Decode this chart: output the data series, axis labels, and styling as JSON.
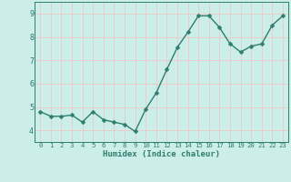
{
  "x": [
    0,
    1,
    2,
    3,
    4,
    5,
    6,
    7,
    8,
    9,
    10,
    11,
    12,
    13,
    14,
    15,
    16,
    17,
    18,
    19,
    20,
    21,
    22,
    23
  ],
  "y": [
    4.8,
    4.6,
    4.6,
    4.65,
    4.35,
    4.8,
    4.45,
    4.35,
    4.25,
    3.95,
    4.9,
    5.6,
    6.6,
    7.55,
    8.2,
    8.9,
    8.9,
    8.4,
    7.7,
    7.35,
    7.6,
    7.7,
    8.5,
    8.9
  ],
  "line_color": "#2e7d6e",
  "marker_color": "#2e7d6e",
  "bg_color": "#cceee8",
  "grid_color": "#f5c0c0",
  "xlabel": "Humidex (Indice chaleur)",
  "xlabel_color": "#2e7d6e",
  "tick_color": "#2e7d6e",
  "ylim": [
    3.5,
    9.5
  ],
  "xlim": [
    -0.5,
    23.5
  ],
  "yticks": [
    4,
    5,
    6,
    7,
    8,
    9
  ],
  "xticks": [
    0,
    1,
    2,
    3,
    4,
    5,
    6,
    7,
    8,
    9,
    10,
    11,
    12,
    13,
    14,
    15,
    16,
    17,
    18,
    19,
    20,
    21,
    22,
    23
  ],
  "xtick_labels": [
    "0",
    "1",
    "2",
    "3",
    "4",
    "5",
    "6",
    "7",
    "8",
    "9",
    "10",
    "11",
    "12",
    "13",
    "14",
    "15",
    "16",
    "17",
    "18",
    "19",
    "20",
    "21",
    "22",
    "23"
  ],
  "spine_color": "#2e7d6e",
  "marker_size": 2.5,
  "line_width": 1.0,
  "xlabel_fontsize": 6.5,
  "xtick_fontsize": 5.2,
  "ytick_fontsize": 6.0
}
